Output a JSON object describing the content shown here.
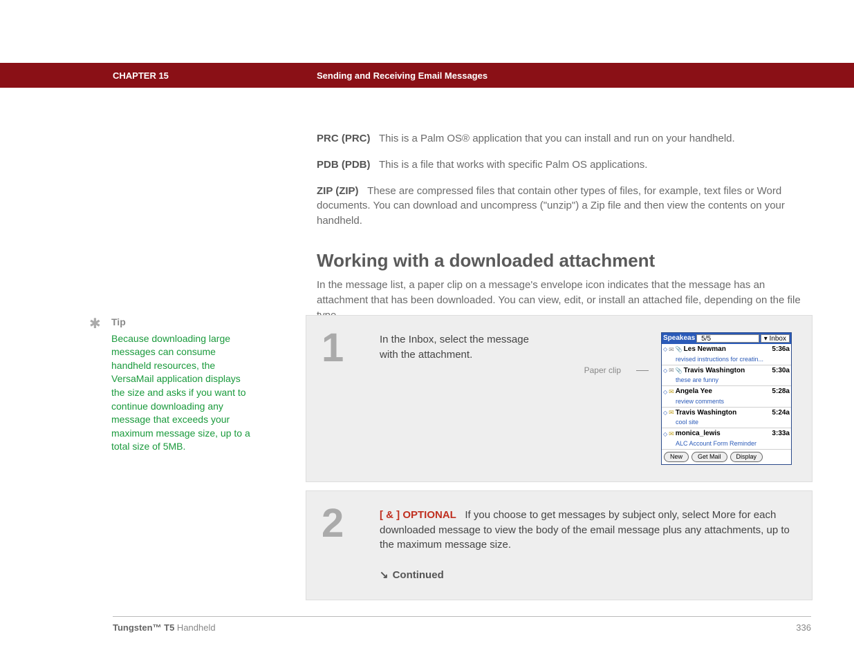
{
  "header": {
    "chapter": "CHAPTER 15",
    "title": "Sending and Receiving Email Messages"
  },
  "definitions": [
    {
      "term": "PRC (PRC)",
      "body": "This is a Palm OS® application that you can install and run on your handheld."
    },
    {
      "term": "PDB (PDB)",
      "body": "This is a file that works with specific Palm OS applications."
    },
    {
      "term": "ZIP (ZIP)",
      "body": "These are compressed files that contain other types of files, for example, text files or Word documents. You can download and uncompress (\"unzip\") a Zip file and then view the contents on your handheld."
    }
  ],
  "section": {
    "heading": "Working with a downloaded attachment",
    "intro": "In the message list, a paper clip on a message's envelope icon indicates that the message has an attachment that has been downloaded. You can view, edit, or install an attached file, depending on the file type."
  },
  "tip": {
    "label": "Tip",
    "body": "Because downloading large messages can consume handheld resources, the VersaMail application displays the size and asks if you want to continue downloading any message that exceeds your maximum message size, up to a total size of 5MB."
  },
  "steps": {
    "one": {
      "num": "1",
      "text": "In the Inbox, select the message with the attachment.",
      "callout": "Paper clip"
    },
    "two": {
      "num": "2",
      "optional_tag": "[ & ]  OPTIONAL",
      "body": "If you choose to get messages by subject only, select More for each downloaded message to view the body of the email message plus any attachments, up to the maximum message size.",
      "continued": "Continued"
    }
  },
  "palm": {
    "account": "Speakeas",
    "counter": "5/5",
    "folder": "Inbox",
    "rows": [
      {
        "from": "Les Newman",
        "time": "5:36a",
        "subj": "revised instructions for creatin...",
        "clip": true,
        "open": true
      },
      {
        "from": "Travis Washington",
        "time": "5:30a",
        "subj": "these are funny",
        "clip": true,
        "open": true
      },
      {
        "from": "Angela Yee",
        "time": "5:28a",
        "subj": "review comments",
        "clip": false,
        "open": false
      },
      {
        "from": "Travis Washington",
        "time": "5:24a",
        "subj": "cool site",
        "clip": false,
        "open": false
      },
      {
        "from": "monica_lewis",
        "time": "3:33a",
        "subj": "ALC Account Form Reminder",
        "clip": false,
        "open": false
      }
    ],
    "buttons": [
      "New",
      "Get Mail",
      "Display"
    ]
  },
  "footer": {
    "product_bold": "Tungsten™ T5",
    "product_rest": " Handheld",
    "page": "336"
  }
}
